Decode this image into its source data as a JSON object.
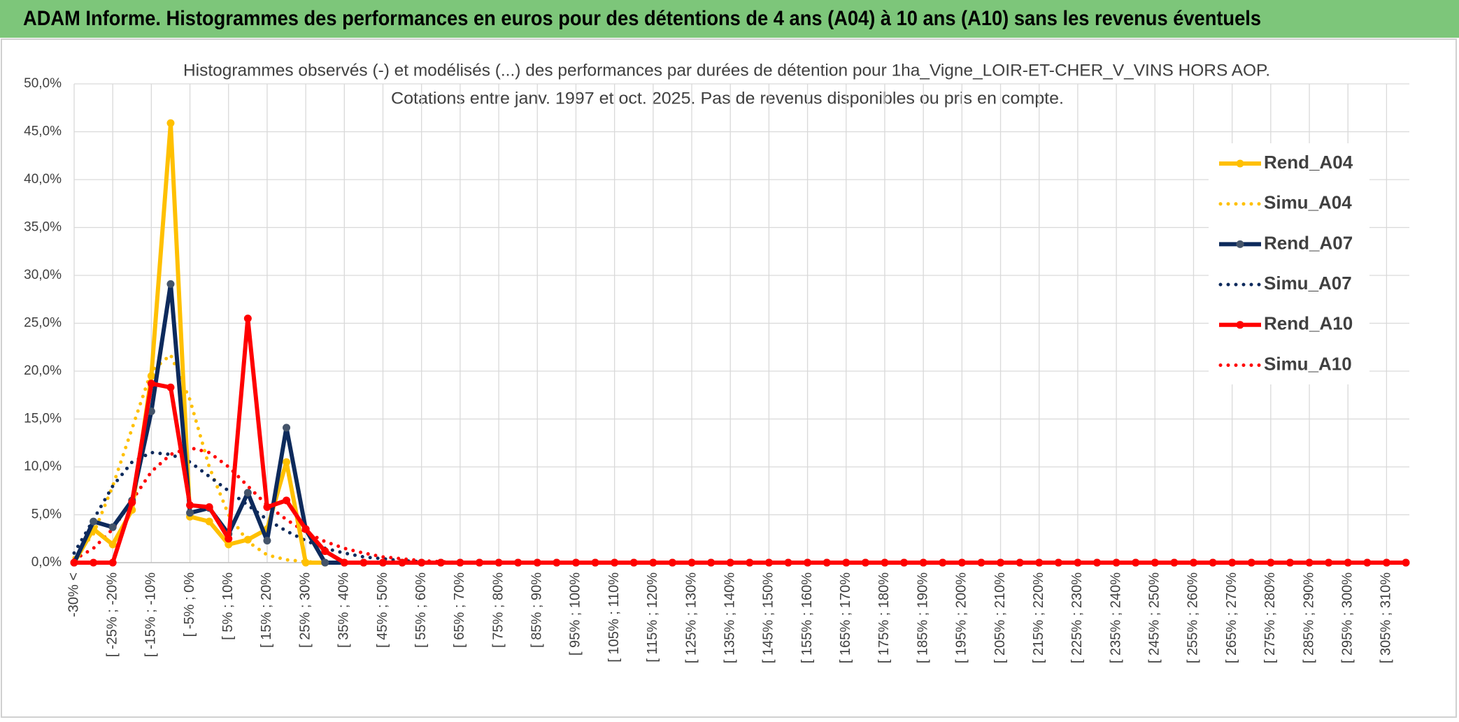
{
  "header": {
    "title": "ADAM Informe. Histogrammes des performances en euros pour des détentions de 4 ans (A04) à 10 ans (A10) sans les revenus éventuels"
  },
  "chart_data": {
    "type": "line",
    "title": "Histogrammes observés (-) et modélisés (...) des performances par durées de détention pour 1ha_Vigne_LOIR-ET-CHER_V_VINS HORS AOP.",
    "subtitle": "Cotations entre janv. 1997 et oct. 2025. Pas de revenus disponibles ou pris en compte.",
    "categories": [
      "-30% <",
      null,
      "[ -25% ; -20%",
      null,
      "[ -15% ; -10%",
      null,
      "[ -5% ; 0%",
      null,
      "[ 5% ; 10%",
      null,
      "[ 15% ; 20%",
      null,
      "[ 25% ; 30%",
      null,
      "[ 35% ; 40%",
      null,
      "[ 45% ; 50%",
      null,
      "[ 55% ; 60%",
      null,
      "[ 65% ; 70%",
      null,
      "[ 75% ; 80%",
      null,
      "[ 85% ; 90%",
      null,
      "[ 95% ; 100%",
      null,
      "[ 105% ; 110%",
      null,
      "[ 115% ; 120%",
      null,
      "[ 125% ; 130%",
      null,
      "[ 135% ; 140%",
      null,
      "[ 145% ; 150%",
      null,
      "[ 155% ; 160%",
      null,
      "[ 165% ; 170%",
      null,
      "[ 175% ; 180%",
      null,
      "[ 185% ; 190%",
      null,
      "[ 195% ; 200%",
      null,
      "[ 205% ; 210%",
      null,
      "[ 215% ; 220%",
      null,
      "[ 225% ; 230%",
      null,
      "[ 235% ; 240%",
      null,
      "[ 245% ; 250%",
      null,
      "[ 255% ; 260%",
      null,
      "[ 265% ; 270%",
      null,
      "[ 275% ; 280%",
      null,
      "[ 285% ; 290%",
      null,
      "[ 295% ; 300%",
      null,
      "[ 305% ; 310%",
      null
    ],
    "series": [
      {
        "name": "Rend_A04",
        "color": "#ffc000",
        "style": "solid",
        "markers": true,
        "values": [
          0,
          3.5,
          1.9,
          5.5,
          19.5,
          45.9,
          4.8,
          4.3,
          1.9,
          2.4,
          3.5,
          10.5,
          0,
          0,
          0,
          0,
          0,
          0,
          0,
          0,
          0,
          0,
          0,
          0,
          0,
          0,
          0,
          0,
          0,
          0,
          0,
          0,
          0,
          0,
          0,
          0,
          0,
          0,
          0,
          0,
          0,
          0,
          0,
          0,
          0,
          0,
          0,
          0,
          0,
          0,
          0,
          0,
          0,
          0,
          0,
          0,
          0,
          0,
          0,
          0,
          0,
          0,
          0,
          0,
          0,
          0,
          0,
          0,
          0,
          0
        ]
      },
      {
        "name": "Simu_A04",
        "color": "#ffc000",
        "style": "dotted",
        "markers": false,
        "values": [
          0.5,
          3,
          8,
          14,
          20,
          21.7,
          17,
          10,
          5,
          2.2,
          0.8,
          0.3,
          0.1,
          0,
          0,
          0,
          0,
          0,
          0,
          0,
          0,
          0,
          0,
          0,
          0,
          0,
          0,
          0,
          0,
          0,
          0,
          0,
          0,
          0,
          0,
          0,
          0,
          0,
          0,
          0,
          0,
          0,
          0,
          0,
          0,
          0,
          0,
          0,
          0,
          0,
          0,
          0,
          0,
          0,
          0,
          0,
          0,
          0,
          0,
          0,
          0,
          0,
          0,
          0,
          0,
          0,
          0,
          0,
          0,
          0
        ]
      },
      {
        "name": "Rend_A07",
        "color": "#0d2a5c",
        "style": "solid",
        "markers": true,
        "values": [
          0,
          4.3,
          3.7,
          6.5,
          15.8,
          29.1,
          5.2,
          5.7,
          3.0,
          7.3,
          2.3,
          14.1,
          3.5,
          0,
          0,
          0,
          0,
          0,
          0,
          0,
          0,
          0,
          0,
          0,
          0,
          0,
          0,
          0,
          0,
          0,
          0,
          0,
          0,
          0,
          0,
          0,
          0,
          0,
          0,
          0,
          0,
          0,
          0,
          0,
          0,
          0,
          0,
          0,
          0,
          0,
          0,
          0,
          0,
          0,
          0,
          0,
          0,
          0,
          0,
          0,
          0,
          0,
          0,
          0,
          0,
          0,
          0,
          0,
          0,
          0
        ]
      },
      {
        "name": "Simu_A07",
        "color": "#0d2a5c",
        "style": "dotted",
        "markers": false,
        "values": [
          1,
          4.5,
          8,
          10.5,
          11.5,
          11.3,
          10.5,
          9,
          7.5,
          6,
          4.5,
          3.3,
          2.3,
          1.5,
          1,
          0.6,
          0.4,
          0.2,
          0.1,
          0,
          0,
          0,
          0,
          0,
          0,
          0,
          0,
          0,
          0,
          0,
          0,
          0,
          0,
          0,
          0,
          0,
          0,
          0,
          0,
          0,
          0,
          0,
          0,
          0,
          0,
          0,
          0,
          0,
          0,
          0,
          0,
          0,
          0,
          0,
          0,
          0,
          0,
          0,
          0,
          0,
          0,
          0,
          0,
          0,
          0,
          0,
          0,
          0,
          0,
          0
        ]
      },
      {
        "name": "Rend_A10",
        "color": "#ff0000",
        "style": "solid",
        "markers": true,
        "values": [
          0,
          0,
          0,
          6.3,
          18.7,
          18.3,
          6.0,
          5.8,
          2.5,
          25.5,
          5.8,
          6.5,
          3.5,
          1.2,
          0,
          0,
          0,
          0,
          0,
          0,
          0,
          0,
          0,
          0,
          0,
          0,
          0,
          0,
          0,
          0,
          0,
          0,
          0,
          0,
          0,
          0,
          0,
          0,
          0,
          0,
          0,
          0,
          0,
          0,
          0,
          0,
          0,
          0,
          0,
          0,
          0,
          0,
          0,
          0,
          0,
          0,
          0,
          0,
          0,
          0,
          0,
          0,
          0,
          0,
          0,
          0,
          0,
          0,
          0,
          0
        ]
      },
      {
        "name": "Simu_A10",
        "color": "#ff0000",
        "style": "dotted",
        "markers": false,
        "values": [
          0.3,
          1.5,
          3.5,
          6.5,
          9.5,
          11.3,
          12,
          11.5,
          10,
          8,
          6,
          4.5,
          3.2,
          2.2,
          1.5,
          1,
          0.6,
          0.4,
          0.2,
          0.1,
          0,
          0,
          0,
          0,
          0,
          0,
          0,
          0,
          0,
          0,
          0,
          0,
          0,
          0,
          0,
          0,
          0,
          0,
          0,
          0,
          0,
          0,
          0,
          0,
          0,
          0,
          0,
          0,
          0,
          0,
          0,
          0,
          0,
          0,
          0,
          0,
          0,
          0,
          0,
          0,
          0,
          0,
          0,
          0,
          0,
          0,
          0,
          0,
          0,
          0
        ]
      }
    ],
    "ylim": [
      0,
      50
    ],
    "yticks": [
      {
        "value": 0,
        "label": "0,0%"
      },
      {
        "value": 5,
        "label": "5,0%"
      },
      {
        "value": 10,
        "label": "10,0%"
      },
      {
        "value": 15,
        "label": "15,0%"
      },
      {
        "value": 20,
        "label": "20,0%"
      },
      {
        "value": 25,
        "label": "25,0%"
      },
      {
        "value": 30,
        "label": "30,0%"
      },
      {
        "value": 35,
        "label": "35,0%"
      },
      {
        "value": 40,
        "label": "40,0%"
      },
      {
        "value": 45,
        "label": "45,0%"
      },
      {
        "value": 50,
        "label": "50,0%"
      }
    ],
    "grid": true,
    "legend": "right"
  }
}
